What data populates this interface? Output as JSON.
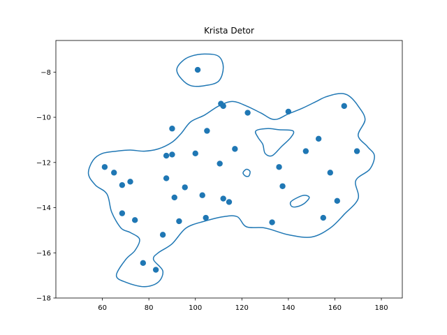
{
  "chart_data": {
    "type": "scatter",
    "title": "Krista Detor",
    "xlabel": "",
    "ylabel": "",
    "xlim": [
      40,
      189
    ],
    "ylim": [
      -18,
      -6.6
    ],
    "xticks": [
      60,
      80,
      100,
      120,
      140,
      160,
      180
    ],
    "yticks": [
      -18,
      -16,
      -14,
      -12,
      -10,
      -8
    ],
    "grid": false,
    "color": "#1f77b4",
    "points": [
      [
        101,
        -7.9
      ],
      [
        111,
        -9.4
      ],
      [
        112,
        -9.5
      ],
      [
        122.5,
        -9.8
      ],
      [
        140,
        -9.75
      ],
      [
        164,
        -9.5
      ],
      [
        90,
        -10.5
      ],
      [
        105,
        -10.6
      ],
      [
        117,
        -11.4
      ],
      [
        153,
        -10.95
      ],
      [
        147.5,
        -11.5
      ],
      [
        169.5,
        -11.5
      ],
      [
        87.5,
        -11.7
      ],
      [
        90,
        -11.65
      ],
      [
        100,
        -11.6
      ],
      [
        110.5,
        -12.05
      ],
      [
        61,
        -12.2
      ],
      [
        65,
        -12.45
      ],
      [
        68.5,
        -13.0
      ],
      [
        72,
        -12.85
      ],
      [
        87.5,
        -12.7
      ],
      [
        136,
        -12.2
      ],
      [
        158,
        -12.45
      ],
      [
        137.5,
        -13.05
      ],
      [
        95.5,
        -13.1
      ],
      [
        91,
        -13.55
      ],
      [
        103,
        -13.45
      ],
      [
        112,
        -13.6
      ],
      [
        114.5,
        -13.75
      ],
      [
        161,
        -13.7
      ],
      [
        68.5,
        -14.25
      ],
      [
        74,
        -14.55
      ],
      [
        93,
        -14.6
      ],
      [
        104.5,
        -14.45
      ],
      [
        133,
        -14.65
      ],
      [
        155,
        -14.45
      ],
      [
        86,
        -15.2
      ],
      [
        77.5,
        -16.45
      ],
      [
        83,
        -16.75
      ]
    ],
    "contours": [
      [
        [
          66,
          -11.5
        ],
        [
          72,
          -11.45
        ],
        [
          78,
          -11.5
        ],
        [
          84,
          -11.4
        ],
        [
          90,
          -11.1
        ],
        [
          94,
          -10.7
        ],
        [
          98,
          -10.2
        ],
        [
          104,
          -9.9
        ],
        [
          110,
          -9.5
        ],
        [
          116,
          -9.3
        ],
        [
          122,
          -9.5
        ],
        [
          128,
          -9.8
        ],
        [
          134,
          -10.1
        ],
        [
          140,
          -9.85
        ],
        [
          146,
          -9.6
        ],
        [
          152,
          -9.3
        ],
        [
          156,
          -9.1
        ],
        [
          162,
          -8.95
        ],
        [
          166,
          -9.05
        ],
        [
          170,
          -9.5
        ],
        [
          173,
          -10.1
        ],
        [
          170,
          -10.8
        ],
        [
          174,
          -11.3
        ],
        [
          177,
          -11.7
        ],
        [
          175,
          -12.3
        ],
        [
          169,
          -12.8
        ],
        [
          170,
          -13.6
        ],
        [
          164,
          -14.3
        ],
        [
          158,
          -14.9
        ],
        [
          150,
          -15.3
        ],
        [
          140,
          -15.2
        ],
        [
          130,
          -14.9
        ],
        [
          122,
          -14.85
        ],
        [
          118,
          -14.4
        ],
        [
          112,
          -14.4
        ],
        [
          104,
          -14.6
        ],
        [
          96,
          -14.9
        ],
        [
          90,
          -15.6
        ],
        [
          84,
          -16.0
        ],
        [
          82,
          -16.3
        ],
        [
          86,
          -16.8
        ],
        [
          84,
          -17.3
        ],
        [
          78,
          -17.5
        ],
        [
          70,
          -17.3
        ],
        [
          66,
          -17.0
        ],
        [
          70,
          -16.3
        ],
        [
          74,
          -15.9
        ],
        [
          76,
          -15.4
        ],
        [
          72,
          -15.1
        ],
        [
          68,
          -14.9
        ],
        [
          64,
          -14.2
        ],
        [
          62,
          -13.4
        ],
        [
          57,
          -13.0
        ],
        [
          54,
          -12.5
        ],
        [
          56,
          -11.9
        ],
        [
          60,
          -11.6
        ],
        [
          66,
          -11.5
        ]
      ],
      [
        [
          94,
          -7.55
        ],
        [
          98,
          -7.3
        ],
        [
          104,
          -7.2
        ],
        [
          110,
          -7.3
        ],
        [
          112,
          -7.8
        ],
        [
          110,
          -8.4
        ],
        [
          104,
          -8.6
        ],
        [
          98,
          -8.6
        ],
        [
          94,
          -8.3
        ],
        [
          92,
          -7.9
        ],
        [
          94,
          -7.55
        ]
      ],
      [
        [
          126,
          -10.6
        ],
        [
          131,
          -10.5
        ],
        [
          136,
          -10.55
        ],
        [
          142,
          -10.6
        ],
        [
          141,
          -10.9
        ],
        [
          137,
          -11.3
        ],
        [
          133,
          -11.7
        ],
        [
          130,
          -11.6
        ],
        [
          129,
          -11.2
        ],
        [
          127,
          -10.9
        ],
        [
          126,
          -10.6
        ]
      ],
      [
        [
          120.5,
          -12.45
        ],
        [
          122,
          -12.3
        ],
        [
          123.5,
          -12.4
        ],
        [
          123,
          -12.6
        ],
        [
          121.5,
          -12.6
        ],
        [
          120.5,
          -12.45
        ]
      ],
      [
        [
          141,
          -13.75
        ],
        [
          144,
          -13.55
        ],
        [
          147,
          -13.45
        ],
        [
          149,
          -13.55
        ],
        [
          147,
          -13.8
        ],
        [
          144,
          -13.95
        ],
        [
          141.5,
          -13.95
        ],
        [
          141,
          -13.75
        ]
      ]
    ]
  }
}
